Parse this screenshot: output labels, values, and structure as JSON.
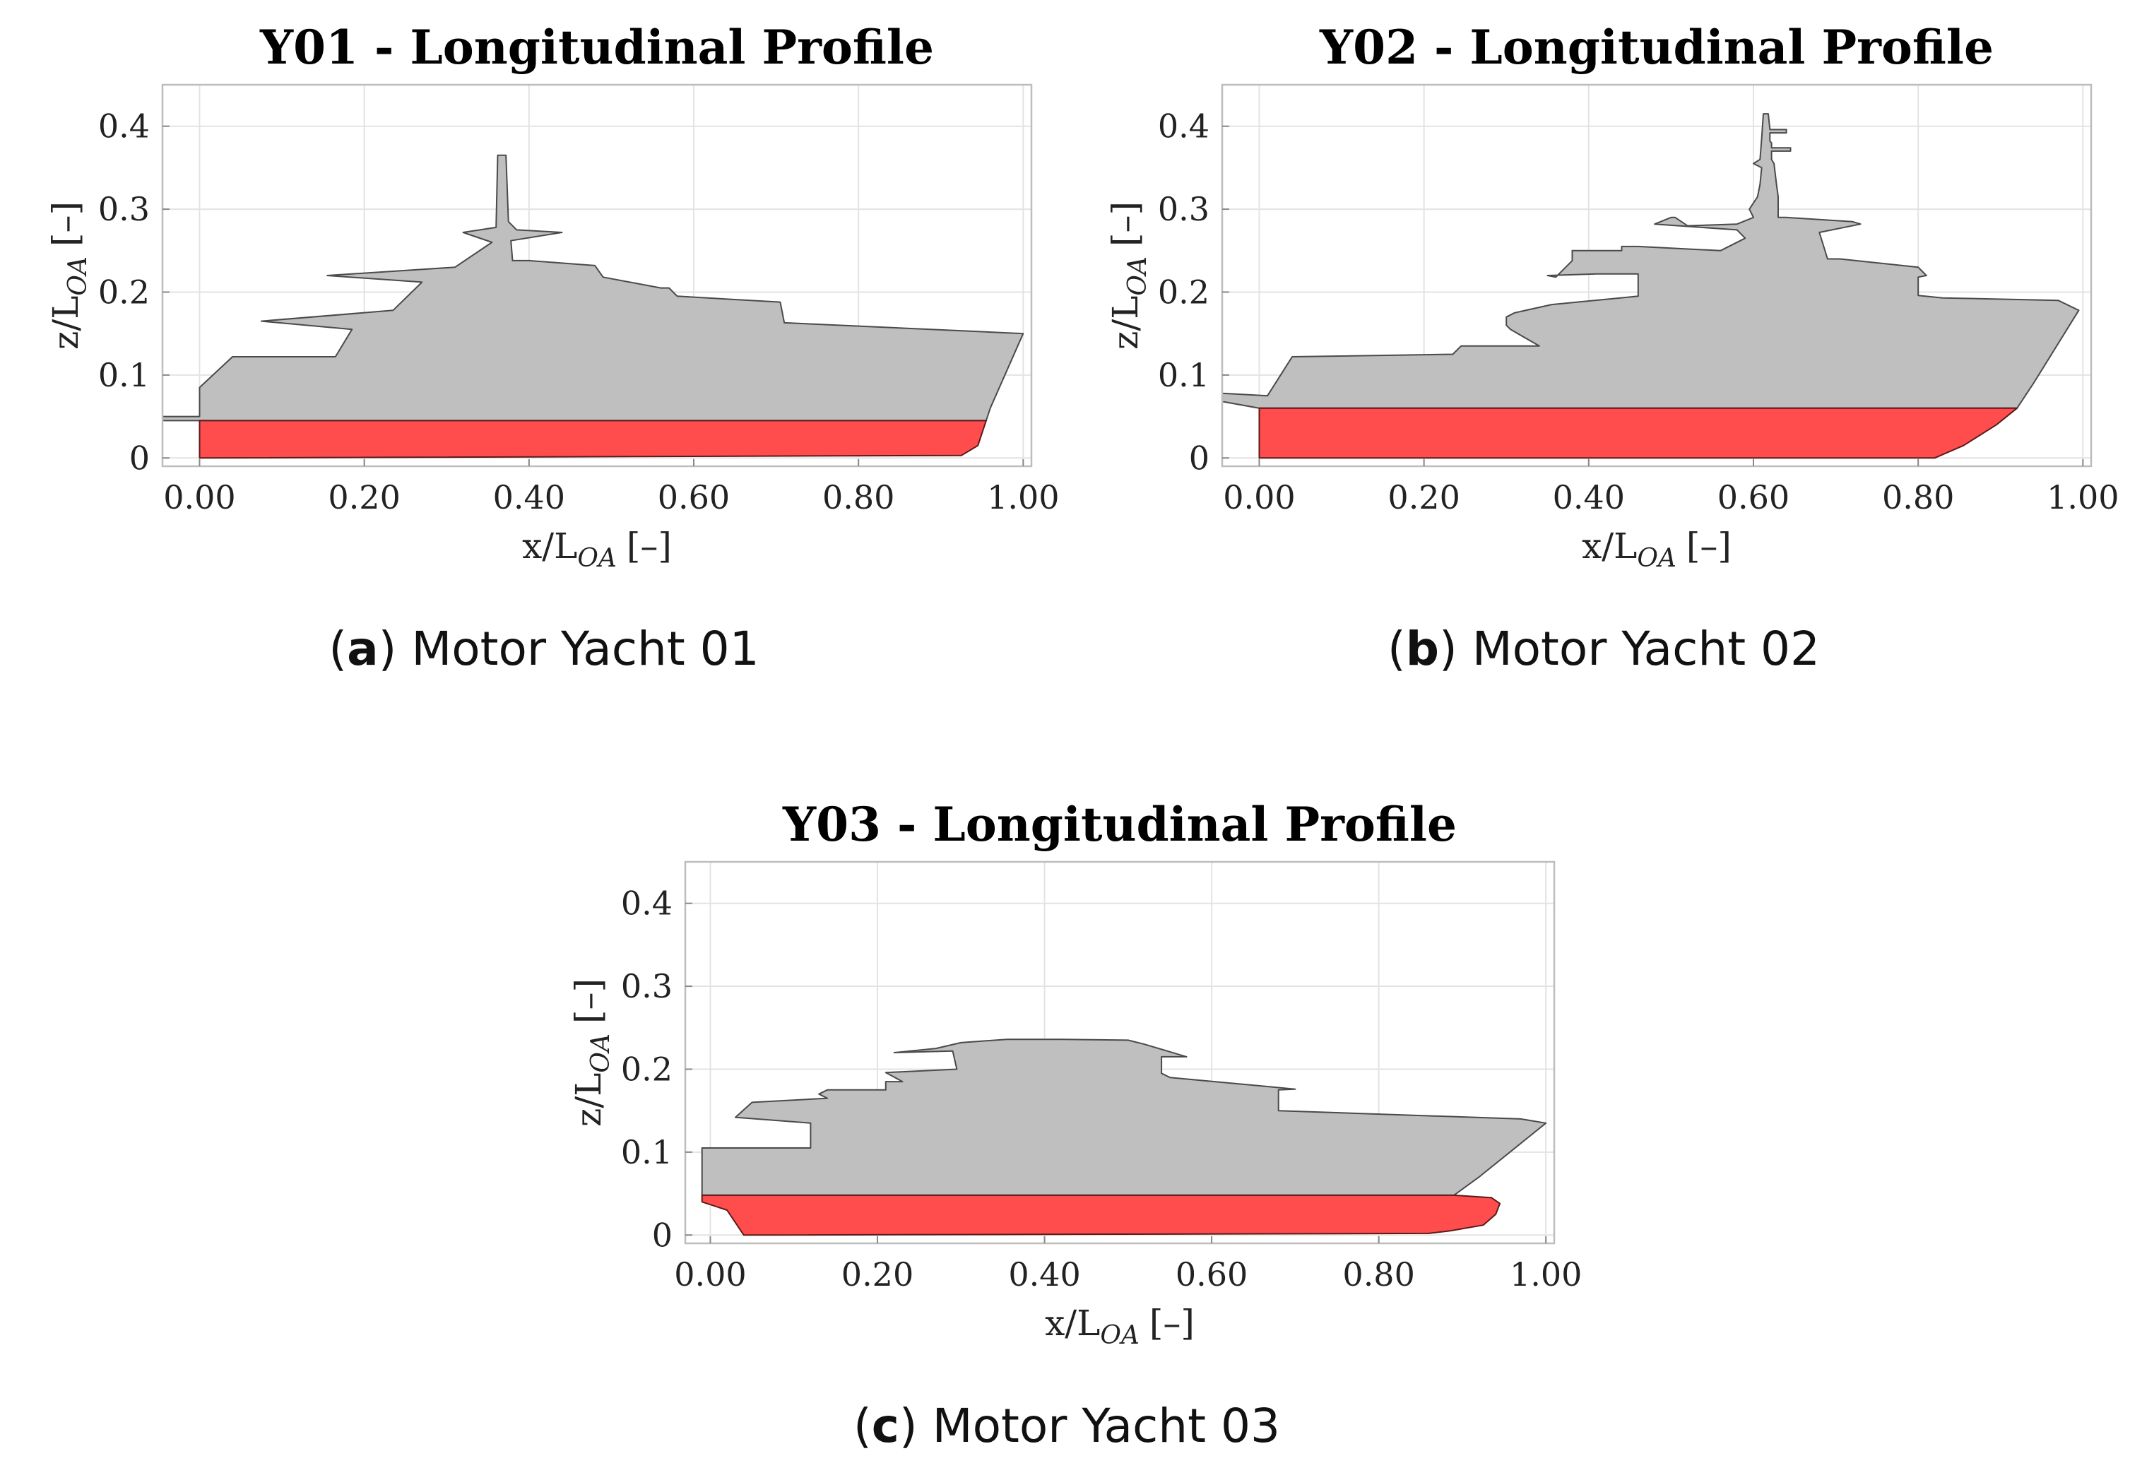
{
  "chart_data": [
    {
      "id": "a",
      "type": "area",
      "title": "Y01 - Longitudinal Profile",
      "xlabel": {
        "main": "x/L",
        "sub": "OA",
        "unit": "[–]"
      },
      "ylabel": {
        "main": "z/L",
        "sub": "OA",
        "unit": "[–]"
      },
      "xlim": [
        -0.045,
        1.01
      ],
      "ylim": [
        -0.01,
        0.45
      ],
      "xticks": [
        0.0,
        0.2,
        0.4,
        0.6,
        0.8,
        1.0
      ],
      "xtick_labels": [
        "0.00",
        "0.20",
        "0.40",
        "0.60",
        "0.80",
        "1.00"
      ],
      "yticks": [
        0,
        0.1,
        0.2,
        0.3,
        0.4
      ],
      "ytick_labels": [
        "0",
        "0.1",
        "0.2",
        "0.3",
        "0.4"
      ],
      "grid": true,
      "caption": {
        "letter": "a",
        "text": "Motor Yacht 01"
      },
      "series": [
        {
          "name": "superstructure",
          "color": "#bfbfbf",
          "points": [
            [
              -0.045,
              0.05
            ],
            [
              -0.045,
              0.045
            ],
            [
              0.0,
              0.045
            ],
            [
              0.955,
              0.045
            ],
            [
              0.96,
              0.06
            ],
            [
              1.0,
              0.15
            ],
            [
              0.71,
              0.163
            ],
            [
              0.705,
              0.188
            ],
            [
              0.58,
              0.195
            ],
            [
              0.575,
              0.2
            ],
            [
              0.57,
              0.205
            ],
            [
              0.56,
              0.205
            ],
            [
              0.49,
              0.218
            ],
            [
              0.48,
              0.232
            ],
            [
              0.4,
              0.238
            ],
            [
              0.38,
              0.238
            ],
            [
              0.378,
              0.262
            ],
            [
              0.44,
              0.272
            ],
            [
              0.385,
              0.275
            ],
            [
              0.375,
              0.285
            ],
            [
              0.372,
              0.365
            ],
            [
              0.362,
              0.365
            ],
            [
              0.36,
              0.278
            ],
            [
              0.32,
              0.272
            ],
            [
              0.355,
              0.26
            ],
            [
              0.31,
              0.23
            ],
            [
              0.155,
              0.22
            ],
            [
              0.27,
              0.212
            ],
            [
              0.235,
              0.178
            ],
            [
              0.075,
              0.165
            ],
            [
              0.185,
              0.155
            ],
            [
              0.165,
              0.122
            ],
            [
              0.04,
              0.122
            ],
            [
              0.0,
              0.085
            ],
            [
              0.0,
              0.05
            ]
          ]
        },
        {
          "name": "hull",
          "color": "#ff4d4d",
          "points": [
            [
              0.0,
              0.045
            ],
            [
              0.955,
              0.045
            ],
            [
              0.945,
              0.015
            ],
            [
              0.925,
              0.003
            ],
            [
              0.0,
              0.0
            ]
          ]
        }
      ]
    },
    {
      "id": "b",
      "type": "area",
      "title": "Y02 - Longitudinal Profile",
      "xlabel": {
        "main": "x/L",
        "sub": "OA",
        "unit": "[–]"
      },
      "ylabel": {
        "main": "z/L",
        "sub": "OA",
        "unit": "[–]"
      },
      "xlim": [
        -0.045,
        1.01
      ],
      "ylim": [
        -0.01,
        0.45
      ],
      "xticks": [
        0.0,
        0.2,
        0.4,
        0.6,
        0.8,
        1.0
      ],
      "xtick_labels": [
        "0.00",
        "0.20",
        "0.40",
        "0.60",
        "0.80",
        "1.00"
      ],
      "yticks": [
        0,
        0.1,
        0.2,
        0.3,
        0.4
      ],
      "ytick_labels": [
        "0",
        "0.1",
        "0.2",
        "0.3",
        "0.4"
      ],
      "grid": true,
      "caption": {
        "letter": "b",
        "text": "Motor Yacht 02"
      },
      "series": [
        {
          "name": "superstructure",
          "color": "#bfbfbf",
          "points": [
            [
              -0.045,
              0.078
            ],
            [
              -0.045,
              0.068
            ],
            [
              0.0,
              0.06
            ],
            [
              0.92,
              0.06
            ],
            [
              0.94,
              0.09
            ],
            [
              0.995,
              0.178
            ],
            [
              0.97,
              0.19
            ],
            [
              0.83,
              0.193
            ],
            [
              0.8,
              0.196
            ],
            [
              0.8,
              0.218
            ],
            [
              0.81,
              0.22
            ],
            [
              0.8,
              0.23
            ],
            [
              0.705,
              0.24
            ],
            [
              0.69,
              0.24
            ],
            [
              0.68,
              0.272
            ],
            [
              0.73,
              0.282
            ],
            [
              0.72,
              0.285
            ],
            [
              0.64,
              0.29
            ],
            [
              0.63,
              0.29
            ],
            [
              0.63,
              0.315
            ],
            [
              0.628,
              0.33
            ],
            [
              0.625,
              0.355
            ],
            [
              0.622,
              0.36
            ],
            [
              0.622,
              0.37
            ],
            [
              0.645,
              0.37
            ],
            [
              0.645,
              0.374
            ],
            [
              0.622,
              0.374
            ],
            [
              0.622,
              0.38
            ],
            [
              0.62,
              0.382
            ],
            [
              0.62,
              0.392
            ],
            [
              0.64,
              0.392
            ],
            [
              0.64,
              0.396
            ],
            [
              0.62,
              0.396
            ],
            [
              0.618,
              0.415
            ],
            [
              0.612,
              0.415
            ],
            [
              0.61,
              0.385
            ],
            [
              0.608,
              0.36
            ],
            [
              0.6,
              0.355
            ],
            [
              0.61,
              0.35
            ],
            [
              0.608,
              0.33
            ],
            [
              0.605,
              0.315
            ],
            [
              0.595,
              0.3
            ],
            [
              0.6,
              0.29
            ],
            [
              0.58,
              0.282
            ],
            [
              0.52,
              0.28
            ],
            [
              0.505,
              0.29
            ],
            [
              0.5,
              0.29
            ],
            [
              0.48,
              0.282
            ],
            [
              0.58,
              0.275
            ],
            [
              0.59,
              0.265
            ],
            [
              0.56,
              0.25
            ],
            [
              0.46,
              0.255
            ],
            [
              0.44,
              0.255
            ],
            [
              0.44,
              0.25
            ],
            [
              0.38,
              0.25
            ],
            [
              0.38,
              0.238
            ],
            [
              0.36,
              0.218
            ],
            [
              0.35,
              0.22
            ],
            [
              0.41,
              0.222
            ],
            [
              0.46,
              0.222
            ],
            [
              0.46,
              0.195
            ],
            [
              0.355,
              0.185
            ],
            [
              0.31,
              0.175
            ],
            [
              0.3,
              0.17
            ],
            [
              0.3,
              0.16
            ],
            [
              0.305,
              0.155
            ],
            [
              0.34,
              0.135
            ],
            [
              0.245,
              0.135
            ],
            [
              0.235,
              0.125
            ],
            [
              0.04,
              0.122
            ],
            [
              0.01,
              0.075
            ],
            [
              -0.045,
              0.078
            ]
          ]
        },
        {
          "name": "hull",
          "color": "#ff4d4d",
          "points": [
            [
              0.0,
              0.06
            ],
            [
              0.92,
              0.06
            ],
            [
              0.895,
              0.04
            ],
            [
              0.855,
              0.015
            ],
            [
              0.82,
              0.0
            ],
            [
              0.0,
              0.0
            ]
          ]
        }
      ]
    },
    {
      "id": "c",
      "type": "area",
      "title": "Y03 - Longitudinal Profile",
      "xlabel": {
        "main": "x/L",
        "sub": "OA",
        "unit": "[–]"
      },
      "ylabel": {
        "main": "z/L",
        "sub": "OA",
        "unit": "[–]"
      },
      "xlim": [
        -0.03,
        1.01
      ],
      "ylim": [
        -0.01,
        0.45
      ],
      "xticks": [
        0.0,
        0.2,
        0.4,
        0.6,
        0.8,
        1.0
      ],
      "xtick_labels": [
        "0.00",
        "0.20",
        "0.40",
        "0.60",
        "0.80",
        "1.00"
      ],
      "yticks": [
        0,
        0.1,
        0.2,
        0.3,
        0.4
      ],
      "ytick_labels": [
        "0",
        "0.1",
        "0.2",
        "0.3",
        "0.4"
      ],
      "grid": true,
      "caption": {
        "letter": "c",
        "text": "Motor Yacht 03"
      },
      "series": [
        {
          "name": "superstructure",
          "color": "#bfbfbf",
          "points": [
            [
              -0.01,
              0.105
            ],
            [
              -0.01,
              0.048
            ],
            [
              0.89,
              0.048
            ],
            [
              0.92,
              0.07
            ],
            [
              1.0,
              0.135
            ],
            [
              0.97,
              0.14
            ],
            [
              0.68,
              0.15
            ],
            [
              0.68,
              0.175
            ],
            [
              0.7,
              0.176
            ],
            [
              0.55,
              0.19
            ],
            [
              0.54,
              0.195
            ],
            [
              0.54,
              0.215
            ],
            [
              0.57,
              0.215
            ],
            [
              0.52,
              0.23
            ],
            [
              0.5,
              0.235
            ],
            [
              0.42,
              0.236
            ],
            [
              0.355,
              0.236
            ],
            [
              0.3,
              0.232
            ],
            [
              0.27,
              0.225
            ],
            [
              0.22,
              0.22
            ],
            [
              0.29,
              0.222
            ],
            [
              0.295,
              0.2
            ],
            [
              0.21,
              0.196
            ],
            [
              0.23,
              0.185
            ],
            [
              0.21,
              0.185
            ],
            [
              0.21,
              0.175
            ],
            [
              0.14,
              0.175
            ],
            [
              0.13,
              0.17
            ],
            [
              0.14,
              0.165
            ],
            [
              0.05,
              0.16
            ],
            [
              0.03,
              0.142
            ],
            [
              0.12,
              0.135
            ],
            [
              0.12,
              0.105
            ],
            [
              -0.01,
              0.105
            ]
          ]
        },
        {
          "name": "hull",
          "color": "#ff4d4d",
          "points": [
            [
              -0.01,
              0.048
            ],
            [
              0.89,
              0.048
            ],
            [
              0.935,
              0.045
            ],
            [
              0.945,
              0.038
            ],
            [
              0.94,
              0.025
            ],
            [
              0.925,
              0.012
            ],
            [
              0.885,
              0.005
            ],
            [
              0.86,
              0.002
            ],
            [
              0.04,
              0.0
            ],
            [
              0.02,
              0.03
            ],
            [
              -0.01,
              0.04
            ]
          ]
        }
      ]
    }
  ]
}
